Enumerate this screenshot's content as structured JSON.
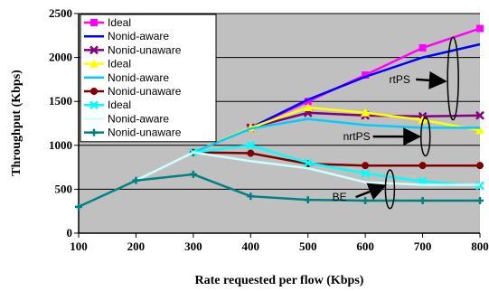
{
  "chart_data": {
    "type": "line",
    "xlabel": "Rate requested per flow (Kbps)",
    "ylabel": "Throughput (Kbps)",
    "xlim": [
      100,
      800
    ],
    "ylim": [
      0,
      2500
    ],
    "x_ticks": [
      "100",
      "200",
      "300",
      "400",
      "500",
      "600",
      "700",
      "800"
    ],
    "y_ticks": [
      "0",
      "500",
      "1000",
      "1500",
      "2000",
      "2500"
    ],
    "x": [
      100,
      200,
      300,
      400,
      500,
      600,
      700,
      800
    ],
    "grid": "horizontal",
    "plot_background": "#c0c0c0",
    "legend_position": "top-left",
    "series": [
      {
        "name": "Ideal",
        "color": "#ff00ff",
        "marker": "square",
        "values": [
          null,
          null,
          null,
          1200,
          1500,
          1800,
          2110,
          2330
        ]
      },
      {
        "name": "Nonid-aware",
        "color": "#0000ff",
        "marker": "none",
        "values": [
          null,
          null,
          null,
          1200,
          1520,
          1780,
          2000,
          2150
        ]
      },
      {
        "name": "Nonid-unaware",
        "color": "#800080",
        "marker": "x",
        "values": [
          null,
          null,
          null,
          1200,
          1370,
          1340,
          1330,
          1340
        ]
      },
      {
        "name": "Ideal",
        "color": "#ffff00",
        "marker": "triangle",
        "values": [
          null,
          null,
          920,
          1200,
          1430,
          1370,
          1290,
          1170
        ]
      },
      {
        "name": "Nonid-aware",
        "color": "#00ccff",
        "marker": "none",
        "values": [
          null,
          null,
          920,
          1190,
          1300,
          1230,
          1200,
          1200
        ]
      },
      {
        "name": "Nonid-unaware",
        "color": "#800000",
        "marker": "circle",
        "values": [
          null,
          null,
          920,
          910,
          790,
          770,
          770,
          770
        ]
      },
      {
        "name": "Ideal",
        "color": "#00ffff",
        "marker": "x",
        "values": [
          null,
          null,
          920,
          1000,
          800,
          680,
          590,
          540
        ]
      },
      {
        "name": "Nonid-aware",
        "color": "#ccffff",
        "marker": "none",
        "values": [
          300,
          600,
          920,
          820,
          740,
          580,
          550,
          550
        ]
      },
      {
        "name": "Nonid-unaware",
        "color": "#008080",
        "marker": "plus",
        "values": [
          300,
          600,
          670,
          420,
          380,
          370,
          370,
          370
        ]
      }
    ],
    "annotations": [
      {
        "text": "rtPS",
        "x": 660,
        "y": 1750,
        "arrow_to": [
          735,
          1730
        ]
      },
      {
        "text": "nrtPS",
        "x": 585,
        "y": 1100,
        "arrow_to": [
          690,
          1100
        ]
      },
      {
        "text": "BE",
        "x": 555,
        "y": 410,
        "arrow_to": [
          630,
          530
        ]
      }
    ],
    "groupings": [
      {
        "label": "rtPS",
        "cx": 753,
        "cy": 1760,
        "rx": 6,
        "ry": 470
      },
      {
        "label": "nrtPS",
        "cx": 705,
        "cy": 1100,
        "rx": 5,
        "ry": 220
      },
      {
        "label": "BE",
        "cx": 643,
        "cy": 500,
        "rx": 5,
        "ry": 220
      }
    ]
  }
}
